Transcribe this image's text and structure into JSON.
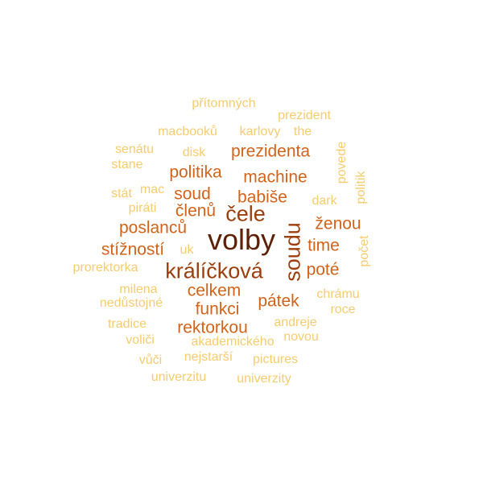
{
  "palette": {
    "c1": "#f7cc6e",
    "c2": "#f2b24c",
    "c3": "#e8862a",
    "c4": "#d2631a",
    "c5": "#9c3e0d",
    "c6": "#5c2106"
  },
  "words": [
    {
      "text": "volby",
      "weight": 10,
      "color": "c6"
    },
    {
      "text": "králíčková",
      "weight": 8,
      "color": "c5"
    },
    {
      "text": "soudu",
      "weight": 8,
      "color": "c5"
    },
    {
      "text": "čele",
      "weight": 7,
      "color": "c5"
    },
    {
      "text": "prezidenta",
      "weight": 6,
      "color": "c4"
    },
    {
      "text": "politika",
      "weight": 6,
      "color": "c4"
    },
    {
      "text": "machine",
      "weight": 6,
      "color": "c4"
    },
    {
      "text": "soud",
      "weight": 6,
      "color": "c4"
    },
    {
      "text": "babiše",
      "weight": 6,
      "color": "c4"
    },
    {
      "text": "členů",
      "weight": 6,
      "color": "c4"
    },
    {
      "text": "ženou",
      "weight": 6,
      "color": "c4"
    },
    {
      "text": "poslanců",
      "weight": 6,
      "color": "c4"
    },
    {
      "text": "stížností",
      "weight": 6,
      "color": "c4"
    },
    {
      "text": "time",
      "weight": 6,
      "color": "c4"
    },
    {
      "text": "poté",
      "weight": 6,
      "color": "c4"
    },
    {
      "text": "celkem",
      "weight": 6,
      "color": "c4"
    },
    {
      "text": "pátek",
      "weight": 6,
      "color": "c4"
    },
    {
      "text": "funkci",
      "weight": 6,
      "color": "c4"
    },
    {
      "text": "rektorkou",
      "weight": 6,
      "color": "c4"
    },
    {
      "text": "přítomných",
      "weight": 3,
      "color": "c1"
    },
    {
      "text": "prezident",
      "weight": 3,
      "color": "c1"
    },
    {
      "text": "macbooků",
      "weight": 3,
      "color": "c1"
    },
    {
      "text": "karlovy",
      "weight": 3,
      "color": "c1"
    },
    {
      "text": "the",
      "weight": 3,
      "color": "c1"
    },
    {
      "text": "senátu",
      "weight": 3,
      "color": "c1"
    },
    {
      "text": "disk",
      "weight": 3,
      "color": "c1"
    },
    {
      "text": "stane",
      "weight": 3,
      "color": "c1"
    },
    {
      "text": "povede",
      "weight": 3,
      "color": "c1"
    },
    {
      "text": "politik",
      "weight": 3,
      "color": "c1"
    },
    {
      "text": "stát",
      "weight": 3,
      "color": "c1"
    },
    {
      "text": "mac",
      "weight": 3,
      "color": "c1"
    },
    {
      "text": "dark",
      "weight": 3,
      "color": "c1"
    },
    {
      "text": "piráti",
      "weight": 3,
      "color": "c1"
    },
    {
      "text": "uk",
      "weight": 3,
      "color": "c1"
    },
    {
      "text": "počet",
      "weight": 3,
      "color": "c1"
    },
    {
      "text": "prorektorka",
      "weight": 3,
      "color": "c1"
    },
    {
      "text": "milena",
      "weight": 3,
      "color": "c1"
    },
    {
      "text": "chrámu",
      "weight": 3,
      "color": "c1"
    },
    {
      "text": "nedůstojné",
      "weight": 3,
      "color": "c1"
    },
    {
      "text": "roce",
      "weight": 3,
      "color": "c1"
    },
    {
      "text": "tradice",
      "weight": 3,
      "color": "c1"
    },
    {
      "text": "andreje",
      "weight": 3,
      "color": "c1"
    },
    {
      "text": "voliči",
      "weight": 3,
      "color": "c1"
    },
    {
      "text": "akademického",
      "weight": 3,
      "color": "c1"
    },
    {
      "text": "novou",
      "weight": 3,
      "color": "c1"
    },
    {
      "text": "vůči",
      "weight": 3,
      "color": "c1"
    },
    {
      "text": "nejstarší",
      "weight": 3,
      "color": "c1"
    },
    {
      "text": "pictures",
      "weight": 3,
      "color": "c1"
    },
    {
      "text": "univerzitu",
      "weight": 3,
      "color": "c1"
    },
    {
      "text": "univerzity",
      "weight": 3,
      "color": "c1"
    }
  ]
}
